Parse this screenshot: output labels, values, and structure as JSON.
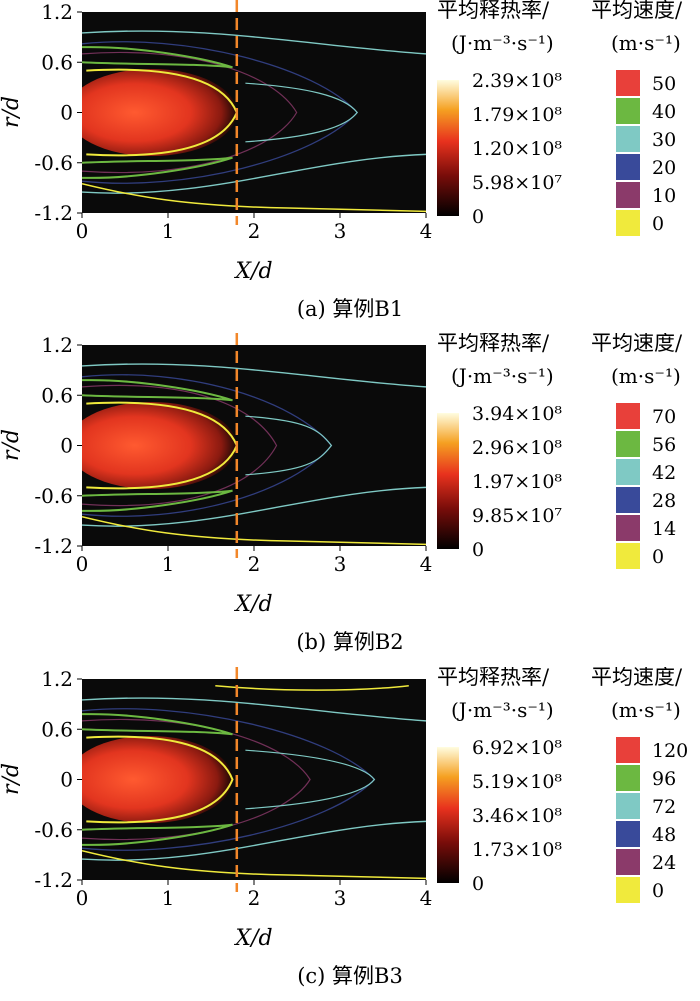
{
  "chart_data": [
    {
      "type": "heatmap",
      "caption": "(a) 算例B1",
      "xlabel": "X/d",
      "ylabel": "r/d",
      "xlim": [
        0,
        4
      ],
      "ylim": [
        -1.2,
        1.2
      ],
      "xticks": [
        "0",
        "1",
        "2",
        "3",
        "4"
      ],
      "yticks": [
        "1.2",
        "0.6",
        "0",
        "-0.6",
        "-1.2"
      ],
      "dashed_line_x": 1.8,
      "heat_colorbar": {
        "title_line1": "平均释热率/",
        "title_line2": "(J·m⁻³·s⁻¹)",
        "labels": [
          "2.39×10⁸",
          "1.79×10⁸",
          "1.20×10⁸",
          "5.98×10⁷",
          "0"
        ],
        "max": 239000000.0
      },
      "velocity_legend": {
        "title_line1": "平均速度/",
        "title_line2": "(m·s⁻¹)",
        "levels": [
          {
            "label": "50",
            "color": "#e8403a"
          },
          {
            "label": "40",
            "color": "#6cb841"
          },
          {
            "label": "30",
            "color": "#7fc9c4"
          },
          {
            "label": "20",
            "color": "#394a9a"
          },
          {
            "label": "10",
            "color": "#8b3a6a"
          },
          {
            "label": "0",
            "color": "#f0ea3c"
          }
        ]
      },
      "flame_extent_x": 1.8,
      "velocity_contour_tip_x": 3.2
    },
    {
      "type": "heatmap",
      "caption": "(b) 算例B2",
      "xlabel": "X/d",
      "ylabel": "r/d",
      "xlim": [
        0,
        4
      ],
      "ylim": [
        -1.2,
        1.2
      ],
      "xticks": [
        "0",
        "1",
        "2",
        "3",
        "4"
      ],
      "yticks": [
        "1.2",
        "0.6",
        "0",
        "-0.6",
        "-1.2"
      ],
      "dashed_line_x": 1.8,
      "heat_colorbar": {
        "title_line1": "平均释热率/",
        "title_line2": "(J·m⁻³·s⁻¹)",
        "labels": [
          "3.94×10⁸",
          "2.96×10⁸",
          "1.97×10⁸",
          "9.85×10⁷",
          "0"
        ],
        "max": 394000000.0
      },
      "velocity_legend": {
        "title_line1": "平均速度/",
        "title_line2": "(m·s⁻¹)",
        "levels": [
          {
            "label": "70",
            "color": "#e8403a"
          },
          {
            "label": "56",
            "color": "#6cb841"
          },
          {
            "label": "42",
            "color": "#7fc9c4"
          },
          {
            "label": "28",
            "color": "#394a9a"
          },
          {
            "label": "14",
            "color": "#8b3a6a"
          },
          {
            "label": "0",
            "color": "#f0ea3c"
          }
        ]
      },
      "flame_extent_x": 1.8,
      "velocity_contour_tip_x": 2.9
    },
    {
      "type": "heatmap",
      "caption": "(c) 算例B3",
      "xlabel": "X/d",
      "ylabel": "r/d",
      "xlim": [
        0,
        4
      ],
      "ylim": [
        -1.2,
        1.2
      ],
      "xticks": [
        "0",
        "1",
        "2",
        "3",
        "4"
      ],
      "yticks": [
        "1.2",
        "0.6",
        "0",
        "-0.6",
        "-1.2"
      ],
      "dashed_line_x": 1.8,
      "heat_colorbar": {
        "title_line1": "平均释热率/",
        "title_line2": "(J·m⁻³·s⁻¹)",
        "labels": [
          "6.92×10⁸",
          "5.19×10⁸",
          "3.46×10⁸",
          "1.73×10⁸",
          "0"
        ],
        "max": 692000000.0
      },
      "velocity_legend": {
        "title_line1": "平均速度/",
        "title_line2": "(m·s⁻¹)",
        "levels": [
          {
            "label": "120",
            "color": "#e8403a"
          },
          {
            "label": "96",
            "color": "#6cb841"
          },
          {
            "label": "72",
            "color": "#7fc9c4"
          },
          {
            "label": "48",
            "color": "#394a9a"
          },
          {
            "label": "24",
            "color": "#8b3a6a"
          },
          {
            "label": "0",
            "color": "#f0ea3c"
          }
        ]
      },
      "flame_extent_x": 1.75,
      "velocity_contour_tip_x": 3.4
    }
  ]
}
